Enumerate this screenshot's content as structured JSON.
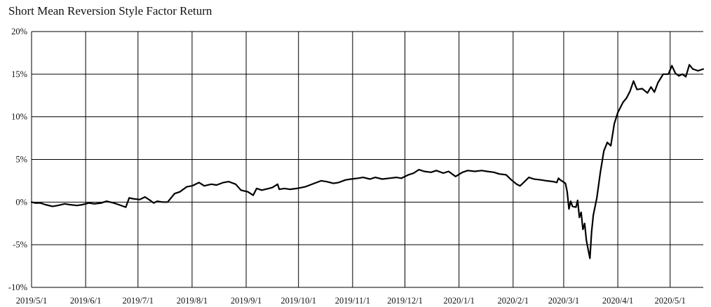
{
  "chart_data": {
    "type": "line",
    "title": "Short Mean Reversion Style Factor Return",
    "xlabel": "",
    "ylabel": "",
    "x_tick_labels": [
      "2019/5/1",
      "2019/6/1",
      "2019/7/1",
      "2019/8/1",
      "2019/9/1",
      "2019/10/1",
      "2019/11/1",
      "2019/12/1",
      "2020/1/1",
      "2020/2/1",
      "2020/3/1",
      "2020/4/1",
      "2020/5/1"
    ],
    "y_tick_labels": [
      "20%",
      "15%",
      "10%",
      "5%",
      "0%",
      "-5%",
      "-10%"
    ],
    "ylim": [
      -10,
      20
    ],
    "xlim": [
      "2019-05-01",
      "2020-05-20"
    ],
    "grid": true,
    "legend": "none",
    "line_color": "#000000",
    "series": [
      {
        "points": [
          [
            "2019-05-01",
            0.0
          ],
          [
            "2019-05-03",
            -0.1
          ],
          [
            "2019-05-06",
            -0.1
          ],
          [
            "2019-05-09",
            -0.3
          ],
          [
            "2019-05-13",
            -0.5
          ],
          [
            "2019-05-16",
            -0.4
          ],
          [
            "2019-05-20",
            -0.2
          ],
          [
            "2019-05-23",
            -0.3
          ],
          [
            "2019-05-27",
            -0.4
          ],
          [
            "2019-05-30",
            -0.3
          ],
          [
            "2019-06-03",
            -0.1
          ],
          [
            "2019-06-06",
            -0.2
          ],
          [
            "2019-06-10",
            -0.1
          ],
          [
            "2019-06-13",
            0.1
          ],
          [
            "2019-06-17",
            -0.1
          ],
          [
            "2019-06-20",
            -0.3
          ],
          [
            "2019-06-24",
            -0.6
          ],
          [
            "2019-06-26",
            0.5
          ],
          [
            "2019-06-28",
            0.4
          ],
          [
            "2019-07-02",
            0.3
          ],
          [
            "2019-07-05",
            0.6
          ],
          [
            "2019-07-08",
            0.2
          ],
          [
            "2019-07-10",
            -0.1
          ],
          [
            "2019-07-12",
            0.1
          ],
          [
            "2019-07-15",
            0.0
          ],
          [
            "2019-07-18",
            0.0
          ],
          [
            "2019-07-22",
            1.0
          ],
          [
            "2019-07-25",
            1.2
          ],
          [
            "2019-07-29",
            1.8
          ],
          [
            "2019-08-01",
            1.9
          ],
          [
            "2019-08-05",
            2.3
          ],
          [
            "2019-08-08",
            1.9
          ],
          [
            "2019-08-12",
            2.1
          ],
          [
            "2019-08-15",
            2.0
          ],
          [
            "2019-08-19",
            2.3
          ],
          [
            "2019-08-22",
            2.4
          ],
          [
            "2019-08-26",
            2.1
          ],
          [
            "2019-08-29",
            1.4
          ],
          [
            "2019-09-02",
            1.2
          ],
          [
            "2019-09-05",
            0.8
          ],
          [
            "2019-09-07",
            1.6
          ],
          [
            "2019-09-10",
            1.4
          ],
          [
            "2019-09-12",
            1.5
          ],
          [
            "2019-09-16",
            1.7
          ],
          [
            "2019-09-19",
            2.1
          ],
          [
            "2019-09-20",
            1.5
          ],
          [
            "2019-09-23",
            1.6
          ],
          [
            "2019-09-26",
            1.5
          ],
          [
            "2019-09-30",
            1.6
          ],
          [
            "2019-10-05",
            1.8
          ],
          [
            "2019-10-10",
            2.2
          ],
          [
            "2019-10-14",
            2.5
          ],
          [
            "2019-10-17",
            2.4
          ],
          [
            "2019-10-21",
            2.2
          ],
          [
            "2019-10-24",
            2.3
          ],
          [
            "2019-10-28",
            2.6
          ],
          [
            "2019-10-31",
            2.7
          ],
          [
            "2019-11-04",
            2.8
          ],
          [
            "2019-11-07",
            2.9
          ],
          [
            "2019-11-11",
            2.7
          ],
          [
            "2019-11-14",
            2.9
          ],
          [
            "2019-11-18",
            2.7
          ],
          [
            "2019-11-22",
            2.8
          ],
          [
            "2019-11-26",
            2.9
          ],
          [
            "2019-11-29",
            2.8
          ],
          [
            "2019-12-03",
            3.2
          ],
          [
            "2019-12-06",
            3.4
          ],
          [
            "2019-12-09",
            3.8
          ],
          [
            "2019-12-12",
            3.6
          ],
          [
            "2019-12-16",
            3.5
          ],
          [
            "2019-12-19",
            3.7
          ],
          [
            "2019-12-23",
            3.4
          ],
          [
            "2019-12-26",
            3.6
          ],
          [
            "2019-12-30",
            3.0
          ],
          [
            "2020-01-03",
            3.5
          ],
          [
            "2020-01-06",
            3.7
          ],
          [
            "2020-01-10",
            3.6
          ],
          [
            "2020-01-14",
            3.7
          ],
          [
            "2020-01-17",
            3.6
          ],
          [
            "2020-01-21",
            3.5
          ],
          [
            "2020-01-24",
            3.3
          ],
          [
            "2020-01-28",
            3.2
          ],
          [
            "2020-01-31",
            2.6
          ],
          [
            "2020-02-03",
            2.1
          ],
          [
            "2020-02-05",
            1.9
          ],
          [
            "2020-02-07",
            2.3
          ],
          [
            "2020-02-10",
            2.9
          ],
          [
            "2020-02-13",
            2.7
          ],
          [
            "2020-02-17",
            2.6
          ],
          [
            "2020-02-20",
            2.5
          ],
          [
            "2020-02-24",
            2.4
          ],
          [
            "2020-02-26",
            2.3
          ],
          [
            "2020-02-27",
            2.8
          ],
          [
            "2020-02-28",
            2.6
          ],
          [
            "2020-03-02",
            2.2
          ],
          [
            "2020-03-03",
            1.2
          ],
          [
            "2020-03-04",
            -0.8
          ],
          [
            "2020-03-05",
            0.1
          ],
          [
            "2020-03-06",
            -0.5
          ],
          [
            "2020-03-08",
            -0.6
          ],
          [
            "2020-03-09",
            0.2
          ],
          [
            "2020-03-10",
            -1.8
          ],
          [
            "2020-03-11",
            -1.2
          ],
          [
            "2020-03-12",
            -3.2
          ],
          [
            "2020-03-13",
            -2.5
          ],
          [
            "2020-03-14",
            -4.5
          ],
          [
            "2020-03-16",
            -6.6
          ],
          [
            "2020-03-17",
            -3.5
          ],
          [
            "2020-03-18",
            -1.5
          ],
          [
            "2020-03-20",
            0.5
          ],
          [
            "2020-03-22",
            3.5
          ],
          [
            "2020-03-24",
            6.0
          ],
          [
            "2020-03-26",
            7.0
          ],
          [
            "2020-03-28",
            6.6
          ],
          [
            "2020-03-30",
            9.2
          ],
          [
            "2020-04-01",
            10.5
          ],
          [
            "2020-04-04",
            11.7
          ],
          [
            "2020-04-06",
            12.2
          ],
          [
            "2020-04-08",
            13.0
          ],
          [
            "2020-04-10",
            14.2
          ],
          [
            "2020-04-12",
            13.2
          ],
          [
            "2020-04-15",
            13.3
          ],
          [
            "2020-04-18",
            12.8
          ],
          [
            "2020-04-20",
            13.5
          ],
          [
            "2020-04-22",
            12.9
          ],
          [
            "2020-04-24",
            14.0
          ],
          [
            "2020-04-27",
            15.0
          ],
          [
            "2020-04-30",
            15.0
          ],
          [
            "2020-05-02",
            16.0
          ],
          [
            "2020-05-04",
            15.1
          ],
          [
            "2020-05-06",
            14.8
          ],
          [
            "2020-05-08",
            15.0
          ],
          [
            "2020-05-10",
            14.7
          ],
          [
            "2020-05-12",
            16.1
          ],
          [
            "2020-05-14",
            15.6
          ],
          [
            "2020-05-17",
            15.4
          ],
          [
            "2020-05-20",
            15.6
          ]
        ]
      }
    ]
  }
}
